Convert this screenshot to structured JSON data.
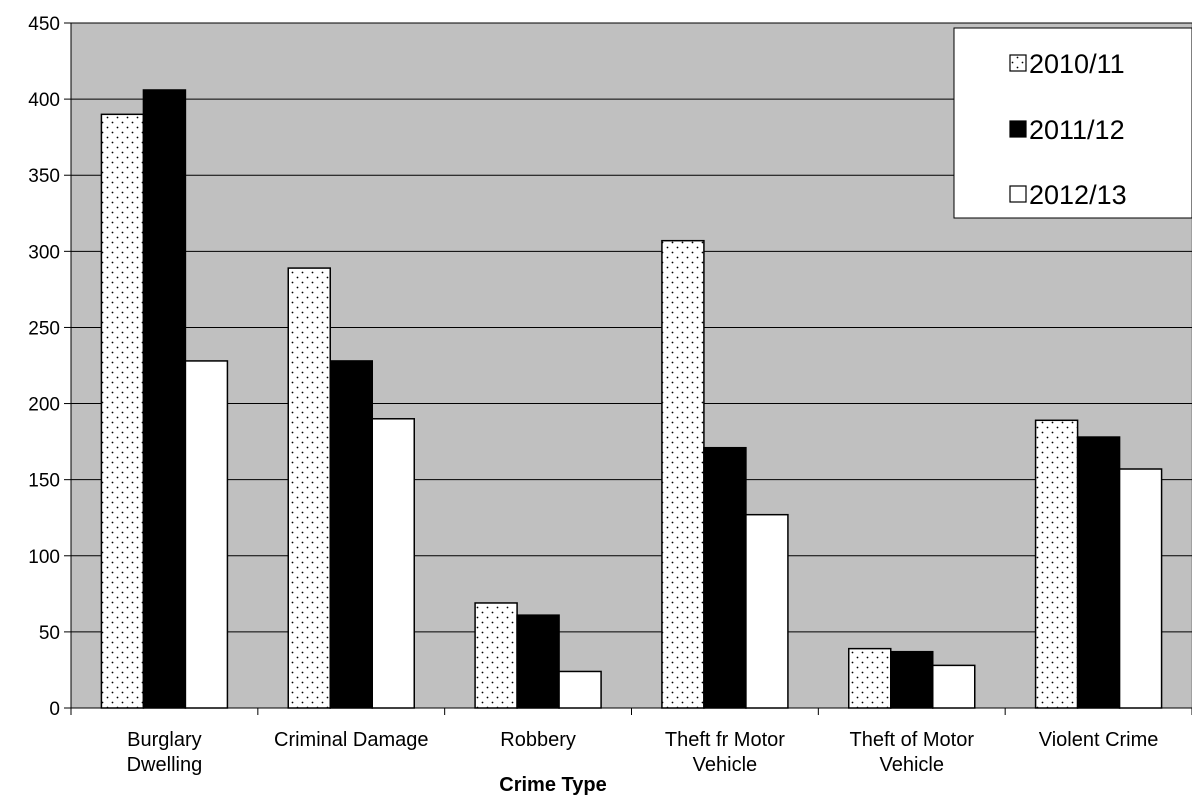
{
  "chart_data": {
    "type": "bar",
    "title": "",
    "xlabel": "Crime Type",
    "ylabel": "",
    "ylim": [
      0,
      450
    ],
    "yticks": [
      0,
      50,
      100,
      150,
      200,
      250,
      300,
      350,
      400,
      450
    ],
    "grid": true,
    "legend_position": "top-right",
    "plot_background": "#c0c0c0",
    "categories": [
      [
        "Burglary",
        "Dwelling"
      ],
      [
        "Criminal Damage"
      ],
      [
        "Robbery"
      ],
      [
        "Theft fr Motor",
        "Vehicle"
      ],
      [
        "Theft of Motor",
        "Vehicle"
      ],
      [
        "Violent Crime"
      ]
    ],
    "series": [
      {
        "name": "2010/11",
        "pattern": "dotted",
        "fill": "#ffffff",
        "values": [
          390,
          289,
          69,
          307,
          39,
          189
        ]
      },
      {
        "name": "2011/12",
        "pattern": "solid",
        "fill": "#000000",
        "values": [
          406,
          228,
          61,
          171,
          37,
          178
        ]
      },
      {
        "name": "2012/13",
        "pattern": "solid",
        "fill": "#ffffff",
        "values": [
          228,
          190,
          24,
          127,
          28,
          157
        ]
      }
    ]
  }
}
